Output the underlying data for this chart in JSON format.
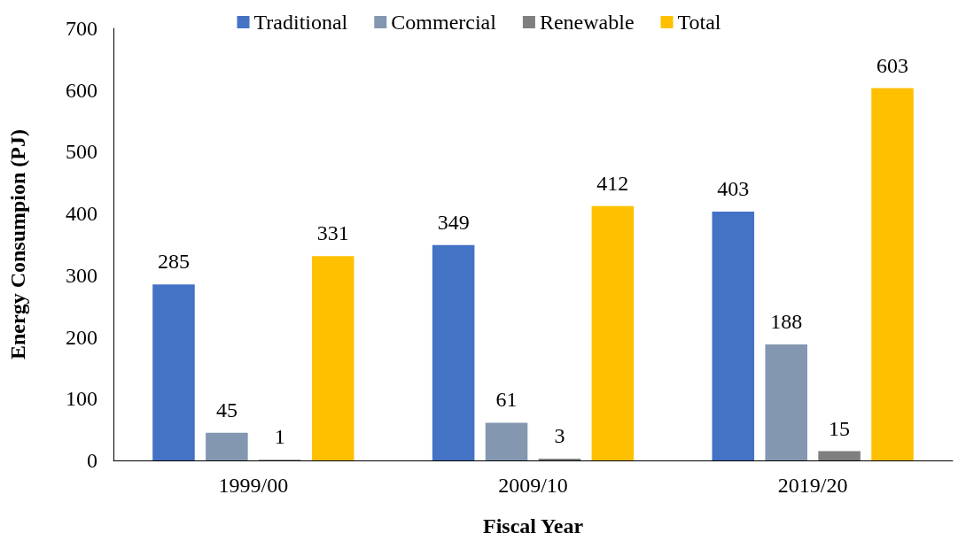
{
  "chart_data": {
    "type": "bar",
    "xlabel": "Fiscal Year",
    "ylabel": "Energy Consumpion (PJ)",
    "categories": [
      "1999/00",
      "2009/10",
      "2019/20"
    ],
    "series": [
      {
        "name": "Traditional",
        "color": "#4472c4",
        "values": [
          285,
          349,
          403
        ]
      },
      {
        "name": "Commercial",
        "color": "#8497b0",
        "values": [
          45,
          61,
          188
        ]
      },
      {
        "name": "Renewable",
        "color": "#7f7f7f",
        "values": [
          1,
          3,
          15
        ]
      },
      {
        "name": "Total",
        "color": "#ffc000",
        "values": [
          331,
          412,
          603
        ]
      }
    ],
    "ylim": [
      0,
      700
    ],
    "yticks": [
      0,
      100,
      200,
      300,
      400,
      500,
      600,
      700
    ],
    "grid": false,
    "legend": "top",
    "data_labels": true
  }
}
